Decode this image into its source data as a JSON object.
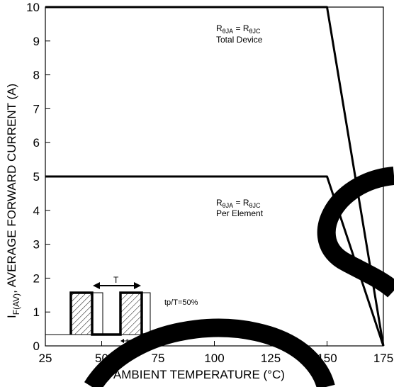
{
  "chart_data": {
    "type": "line",
    "xlabel_main": "T",
    "xlabel_sub": "A",
    "xlabel_rest": ", AMBIENT TEMPERATURE (°C)",
    "ylabel_main": "I",
    "ylabel_sub": "F(AV)",
    "ylabel_rest": ", AVERAGE FORWARD CURRENT (A)",
    "x_ticks": [
      25,
      50,
      75,
      100,
      125,
      150,
      175
    ],
    "y_ticks": [
      0,
      1,
      2,
      3,
      4,
      5,
      6,
      7,
      8,
      9,
      10
    ],
    "xlim": [
      25,
      175
    ],
    "ylim": [
      0,
      10
    ],
    "grid": false,
    "series": [
      {
        "x": [
          25,
          150,
          175
        ],
        "y": [
          10,
          10,
          0
        ]
      },
      {
        "x": [
          25,
          150,
          175
        ],
        "y": [
          5,
          5,
          0
        ]
      },
      {
        "x": [
          150,
          175
        ],
        "y": [
          5,
          0
        ]
      }
    ],
    "annotations": {
      "total": {
        "line1_a": "R",
        "line1_a_sub": "θJA",
        "line1_eq": " = R",
        "line1_b_sub": "θJC",
        "line2": "Total Device"
      },
      "per": {
        "line1_a": "R",
        "line1_a_sub": "θJA",
        "line1_eq": " = R",
        "line1_b_sub": "θJC",
        "line2": "Per Element"
      },
      "inset_T": "T",
      "inset_tp": "tp",
      "inset_ratio": "tp/T=50%"
    }
  },
  "colors": {
    "line": "#000000",
    "watermark": "#000000",
    "background": "#ffffff"
  }
}
